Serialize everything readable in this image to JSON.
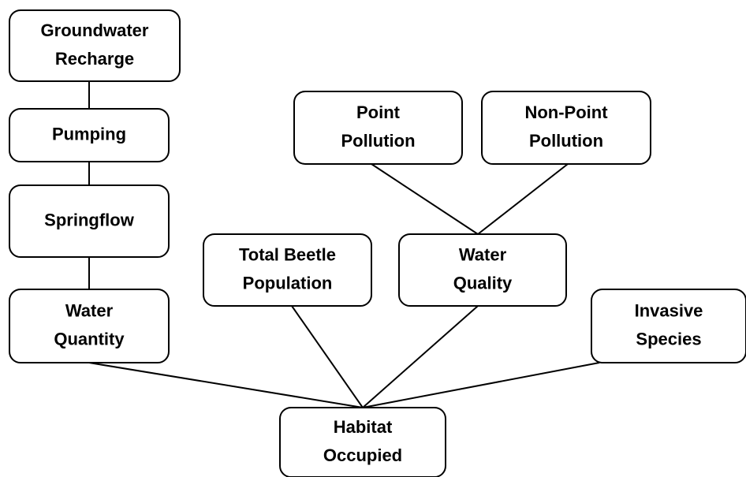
{
  "nodes": [
    {
      "label": [
        "Groundwater",
        "Recharge"
      ]
    },
    {
      "label": [
        "Pumping"
      ]
    },
    {
      "label": [
        "Springflow"
      ]
    },
    {
      "label": [
        "Water",
        "Quantity"
      ]
    },
    {
      "label": [
        "Point",
        "Pollution"
      ]
    },
    {
      "label": [
        "Non-Point",
        "Pollution"
      ]
    },
    {
      "label": [
        "Total Beetle",
        "Population"
      ]
    },
    {
      "label": [
        "Water",
        "Quality"
      ]
    },
    {
      "label": [
        "Invasive",
        "Species"
      ]
    },
    {
      "label": [
        "Habitat",
        "Occupied"
      ]
    }
  ]
}
